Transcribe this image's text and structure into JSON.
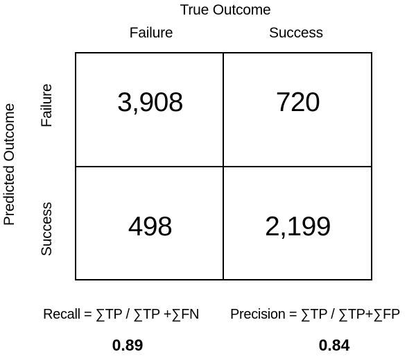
{
  "axes": {
    "x_title": "True Outcome",
    "y_title": "Predicted Outcome",
    "columns": [
      "Failure",
      "Success"
    ],
    "rows": [
      "Failure",
      "Success"
    ]
  },
  "matrix": {
    "cells": [
      [
        "3,908",
        "720"
      ],
      [
        "498",
        "2,199"
      ]
    ]
  },
  "metrics": {
    "recall_formula": "Recall = ∑TP / ∑TP +∑FN",
    "recall_value": "0.89",
    "precision_formula": "Precision = ∑TP / ∑TP+∑FP",
    "precision_value": "0.84"
  }
}
